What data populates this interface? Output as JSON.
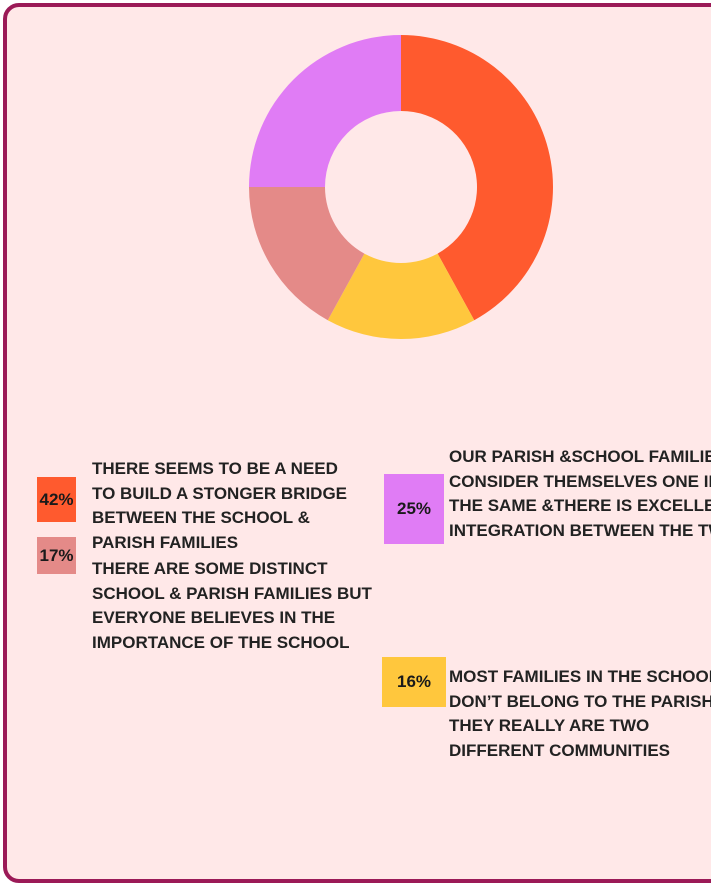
{
  "chart_data": {
    "type": "pie",
    "categories": [
      "THERE SEEMS TO BE A NEED TO BUILD A STONGER BRIDGE BETWEEN THE SCHOOL & PARISH FAMILIES",
      "MOST FAMILIES IN THE SCHOOL DON’T BELONG TO THE PARISH & THEY REALLY ARE TWO DIFFERENT COMMUNITIES",
      "THERE ARE SOME DISTINCT SCHOOL & PARISH FAMILIES BUT EVERYONE BELIEVES IN THE IMPORTANCE OF THE SCHOOL",
      "OUR PARISH &SCHOOL FAMILIES CONSIDER THEMSELVES ONE IN THE SAME &THERE IS EXCELLENT INTEGRATION BETWEEN THE TWO"
    ],
    "values": [
      42,
      16,
      17,
      25
    ],
    "value_labels": [
      "42%",
      "16%",
      "17%",
      "25%"
    ],
    "colors": [
      "#ff5a2e",
      "#ffc73d",
      "#e48a88",
      "#e07cf5"
    ]
  }
}
